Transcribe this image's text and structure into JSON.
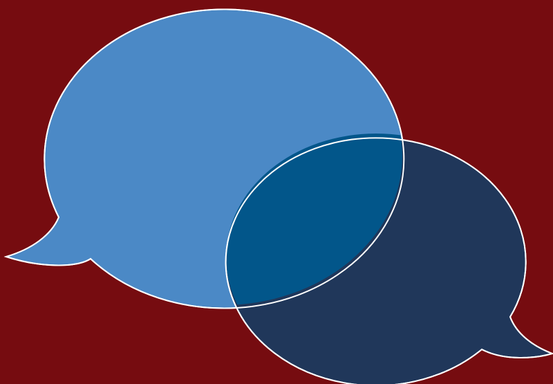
{
  "colors": {
    "background": "#760c10",
    "bubble_left": "#4b89c6",
    "bubble_right": "#20375a",
    "overlap": "#02568a",
    "outline": "#ffffff"
  },
  "icons": {
    "left": "speech-bubble-icon",
    "right": "speech-bubble-icon"
  }
}
